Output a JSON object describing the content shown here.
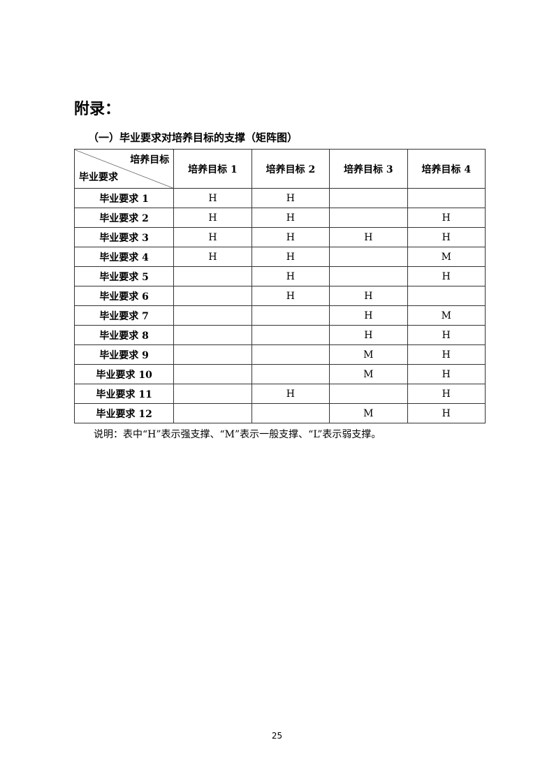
{
  "heading": "附录：",
  "caption": "（一）毕业要求对培养目标的支撑（矩阵图）",
  "table": {
    "corner_top": "培养目标",
    "corner_bottom": "毕业要求",
    "columns": [
      "培养目标 1",
      "培养目标 2",
      "培养目标 3",
      "培养目标 4"
    ],
    "rows": [
      {
        "label": "毕业要求 1",
        "cells": [
          "H",
          "H",
          "",
          ""
        ]
      },
      {
        "label": "毕业要求 2",
        "cells": [
          "H",
          "H",
          "",
          "H"
        ]
      },
      {
        "label": "毕业要求 3",
        "cells": [
          "H",
          "H",
          "H",
          "H"
        ]
      },
      {
        "label": "毕业要求 4",
        "cells": [
          "H",
          "H",
          "",
          "M"
        ]
      },
      {
        "label": "毕业要求 5",
        "cells": [
          "",
          "H",
          "",
          "H"
        ]
      },
      {
        "label": "毕业要求 6",
        "cells": [
          "",
          "H",
          "H",
          ""
        ]
      },
      {
        "label": "毕业要求 7",
        "cells": [
          "",
          "",
          "H",
          "M"
        ]
      },
      {
        "label": "毕业要求 8",
        "cells": [
          "",
          "",
          "H",
          "H"
        ]
      },
      {
        "label": "毕业要求 9",
        "cells": [
          "",
          "",
          "M",
          "H"
        ]
      },
      {
        "label": "毕业要求 10",
        "cells": [
          "",
          "",
          "M",
          "H"
        ]
      },
      {
        "label": "毕业要求 11",
        "cells": [
          "",
          "H",
          "",
          "H"
        ]
      },
      {
        "label": "毕业要求 12",
        "cells": [
          "",
          "",
          "M",
          "H"
        ]
      }
    ]
  },
  "note": "说明：表中“H”表示强支撑、“M”表示一般支撑、“L”表示弱支撑。",
  "page_number": "25"
}
